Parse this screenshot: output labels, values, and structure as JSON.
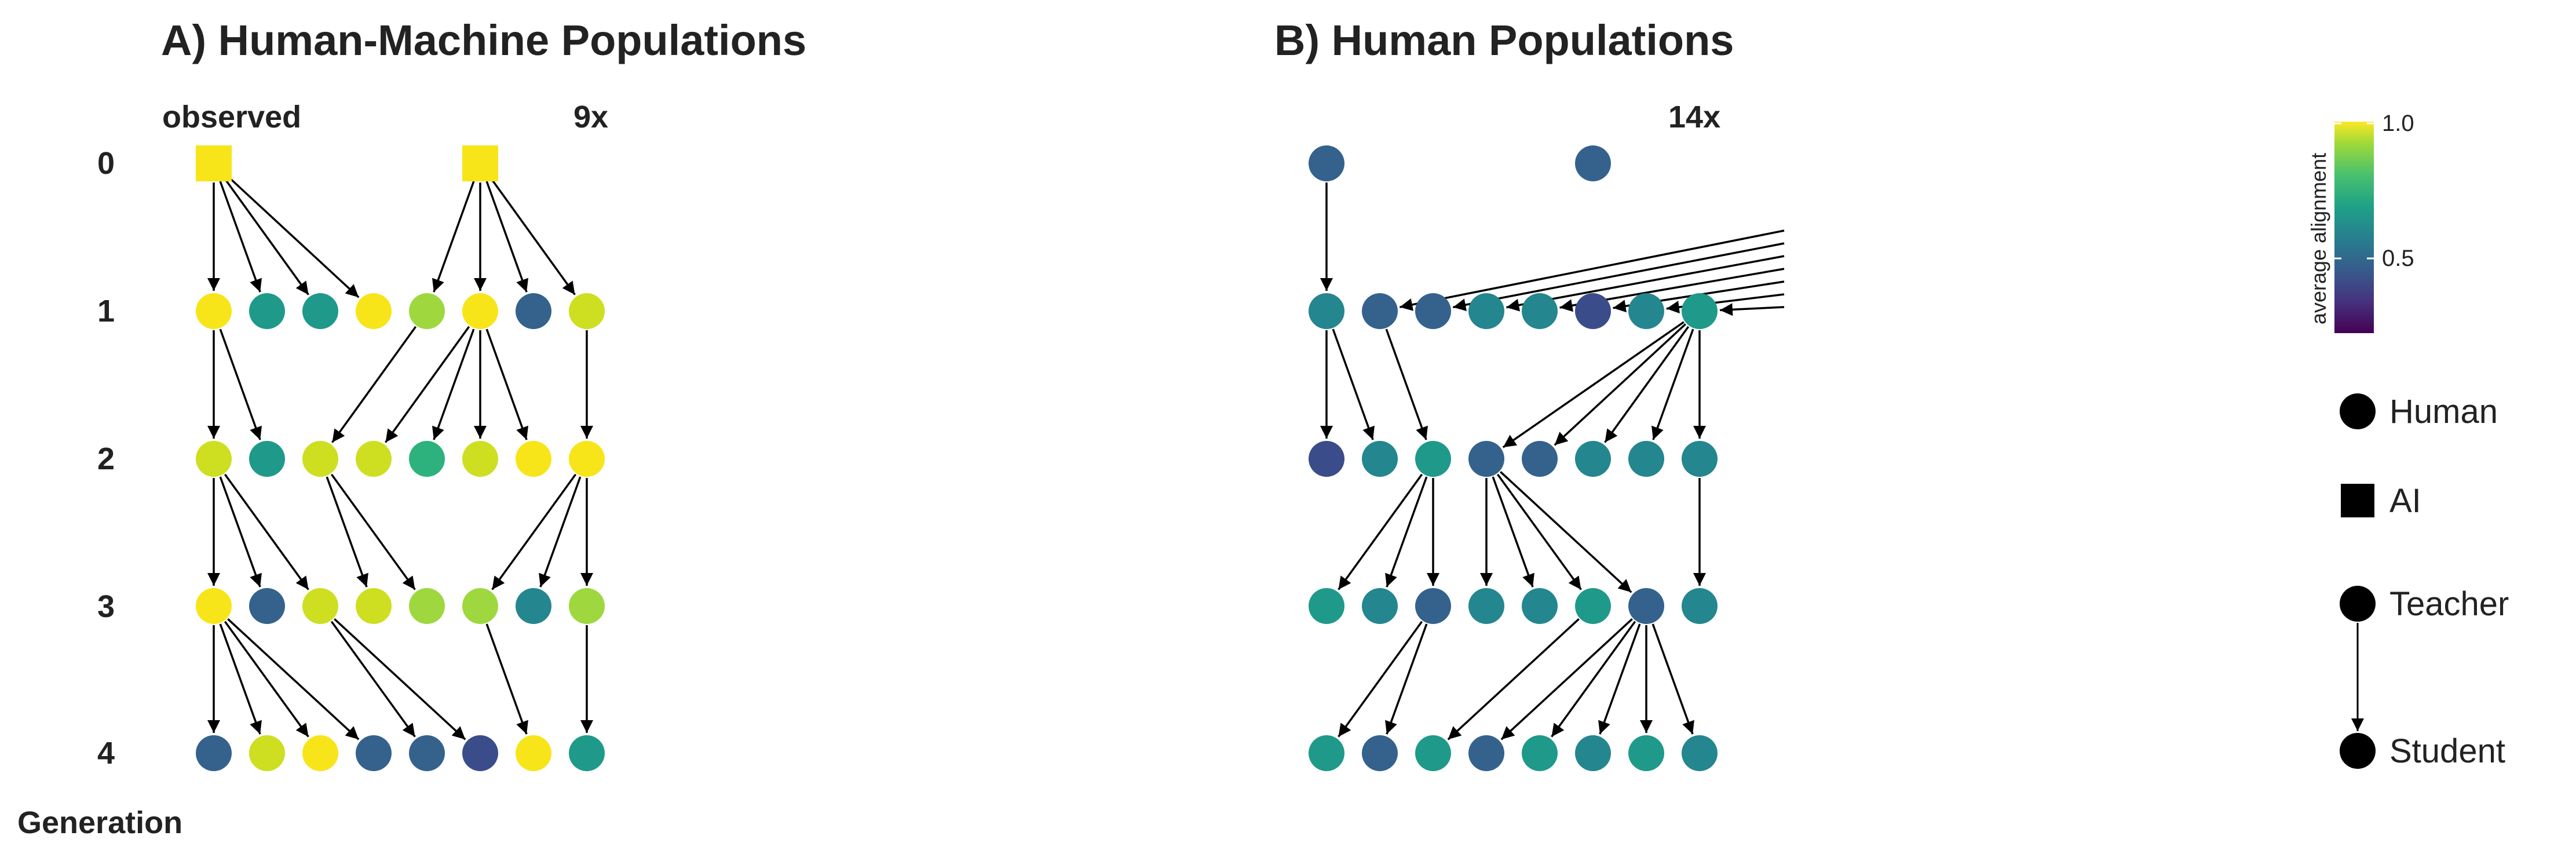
{
  "titles": {
    "panel_a": "A) Human-Machine Populations",
    "panel_b": "B) Human Populations"
  },
  "panel_a": {
    "observed_label": "observed",
    "multiplier": "9x"
  },
  "panel_b": {
    "multiplier": "14x"
  },
  "generation_axis": {
    "label": "Generation",
    "ticks": [
      "0",
      "1",
      "2",
      "3",
      "4"
    ]
  },
  "colorbar": {
    "title": "average alignment",
    "ticks": [
      "1.0",
      "0.5"
    ]
  },
  "legend": {
    "human": "Human",
    "ai": "AI",
    "teacher": "Teacher",
    "student": "Student"
  },
  "colors": {
    "yellow": "#f7e51a",
    "lime": "#cddf20",
    "light_green": "#9ed83e",
    "green": "#2db27d",
    "teal": "#1f998a",
    "dark_teal": "#24868e",
    "blue": "#34628d",
    "indigo": "#3a4c8a",
    "edge": "#000000"
  },
  "chart_data": {
    "type": "network",
    "panels": [
      {
        "name": "A) Human-Machine Populations",
        "generations": [
          [
            {
              "kind": "ai",
              "color": "yellow"
            },
            null,
            null,
            null,
            null,
            {
              "kind": "ai",
              "color": "yellow"
            },
            null,
            null
          ],
          [
            "yellow",
            "teal",
            "teal",
            "yellow",
            "light_green",
            "yellow",
            "blue",
            "lime"
          ],
          [
            "lime",
            "teal",
            "lime",
            "lime",
            "green",
            "lime",
            "yellow",
            "yellow"
          ],
          [
            "yellow",
            "blue",
            "lime",
            "lime",
            "light_green",
            "light_green",
            "dark_teal",
            "light_green"
          ],
          [
            "blue",
            "lime",
            "yellow",
            "blue",
            "blue",
            "indigo",
            "yellow",
            "teal"
          ]
        ],
        "edges": [
          [
            0,
            0,
            1,
            0
          ],
          [
            0,
            0,
            1,
            1
          ],
          [
            0,
            0,
            1,
            2
          ],
          [
            0,
            0,
            1,
            3
          ],
          [
            0,
            5,
            1,
            4
          ],
          [
            0,
            5,
            1,
            5
          ],
          [
            0,
            5,
            1,
            6
          ],
          [
            0,
            5,
            1,
            7
          ],
          [
            1,
            0,
            2,
            0
          ],
          [
            1,
            0,
            2,
            1
          ],
          [
            1,
            4,
            2,
            2
          ],
          [
            1,
            5,
            2,
            3
          ],
          [
            1,
            5,
            2,
            4
          ],
          [
            1,
            5,
            2,
            5
          ],
          [
            1,
            5,
            2,
            6
          ],
          [
            1,
            7,
            2,
            7
          ],
          [
            2,
            0,
            3,
            0
          ],
          [
            2,
            0,
            3,
            1
          ],
          [
            2,
            0,
            3,
            2
          ],
          [
            2,
            2,
            3,
            3
          ],
          [
            2,
            2,
            3,
            4
          ],
          [
            2,
            7,
            3,
            5
          ],
          [
            2,
            7,
            3,
            6
          ],
          [
            2,
            7,
            3,
            7
          ],
          [
            3,
            0,
            4,
            0
          ],
          [
            3,
            0,
            4,
            1
          ],
          [
            3,
            0,
            4,
            2
          ],
          [
            3,
            0,
            4,
            3
          ],
          [
            3,
            2,
            4,
            4
          ],
          [
            3,
            2,
            4,
            5
          ],
          [
            3,
            5,
            4,
            6
          ],
          [
            3,
            7,
            4,
            7
          ]
        ]
      },
      {
        "name": "B) Human Populations",
        "generations": [
          [
            "blue",
            null,
            null,
            null,
            null,
            "blue",
            null,
            null
          ],
          [
            "dark_teal",
            "blue",
            "blue",
            "dark_teal",
            "dark_teal",
            "indigo",
            "dark_teal",
            "teal"
          ],
          [
            "indigo",
            "dark_teal",
            "teal",
            "blue",
            "blue",
            "dark_teal",
            "dark_teal",
            "dark_teal"
          ],
          [
            "teal",
            "dark_teal",
            "blue",
            "dark_teal",
            "dark_teal",
            "teal",
            "blue",
            "dark_teal"
          ],
          [
            "teal",
            "blue",
            "teal",
            "blue",
            "teal",
            "dark_teal",
            "teal",
            "dark_teal"
          ]
        ],
        "edges": [
          [
            0,
            0,
            1,
            0
          ],
          [
            1,
            0,
            2,
            0
          ],
          [
            1,
            0,
            2,
            1
          ],
          [
            1,
            1,
            2,
            2
          ],
          [
            1,
            7,
            2,
            3
          ],
          [
            1,
            7,
            2,
            4
          ],
          [
            1,
            7,
            2,
            5
          ],
          [
            1,
            7,
            2,
            6
          ],
          [
            1,
            7,
            2,
            7
          ],
          [
            2,
            2,
            3,
            0
          ],
          [
            2,
            2,
            3,
            1
          ],
          [
            2,
            2,
            3,
            2
          ],
          [
            2,
            3,
            3,
            3
          ],
          [
            2,
            3,
            3,
            4
          ],
          [
            2,
            3,
            3,
            5
          ],
          [
            2,
            3,
            3,
            6
          ],
          [
            2,
            7,
            3,
            7
          ],
          [
            3,
            2,
            4,
            0
          ],
          [
            3,
            2,
            4,
            1
          ],
          [
            3,
            5,
            4,
            2
          ],
          [
            3,
            6,
            4,
            3
          ],
          [
            3,
            6,
            4,
            4
          ],
          [
            3,
            6,
            4,
            5
          ],
          [
            3,
            6,
            4,
            6
          ],
          [
            3,
            6,
            4,
            7
          ]
        ],
        "offpanel_edges_into_gen1": [
          1,
          2,
          3,
          4,
          5,
          6,
          7
        ]
      }
    ]
  }
}
